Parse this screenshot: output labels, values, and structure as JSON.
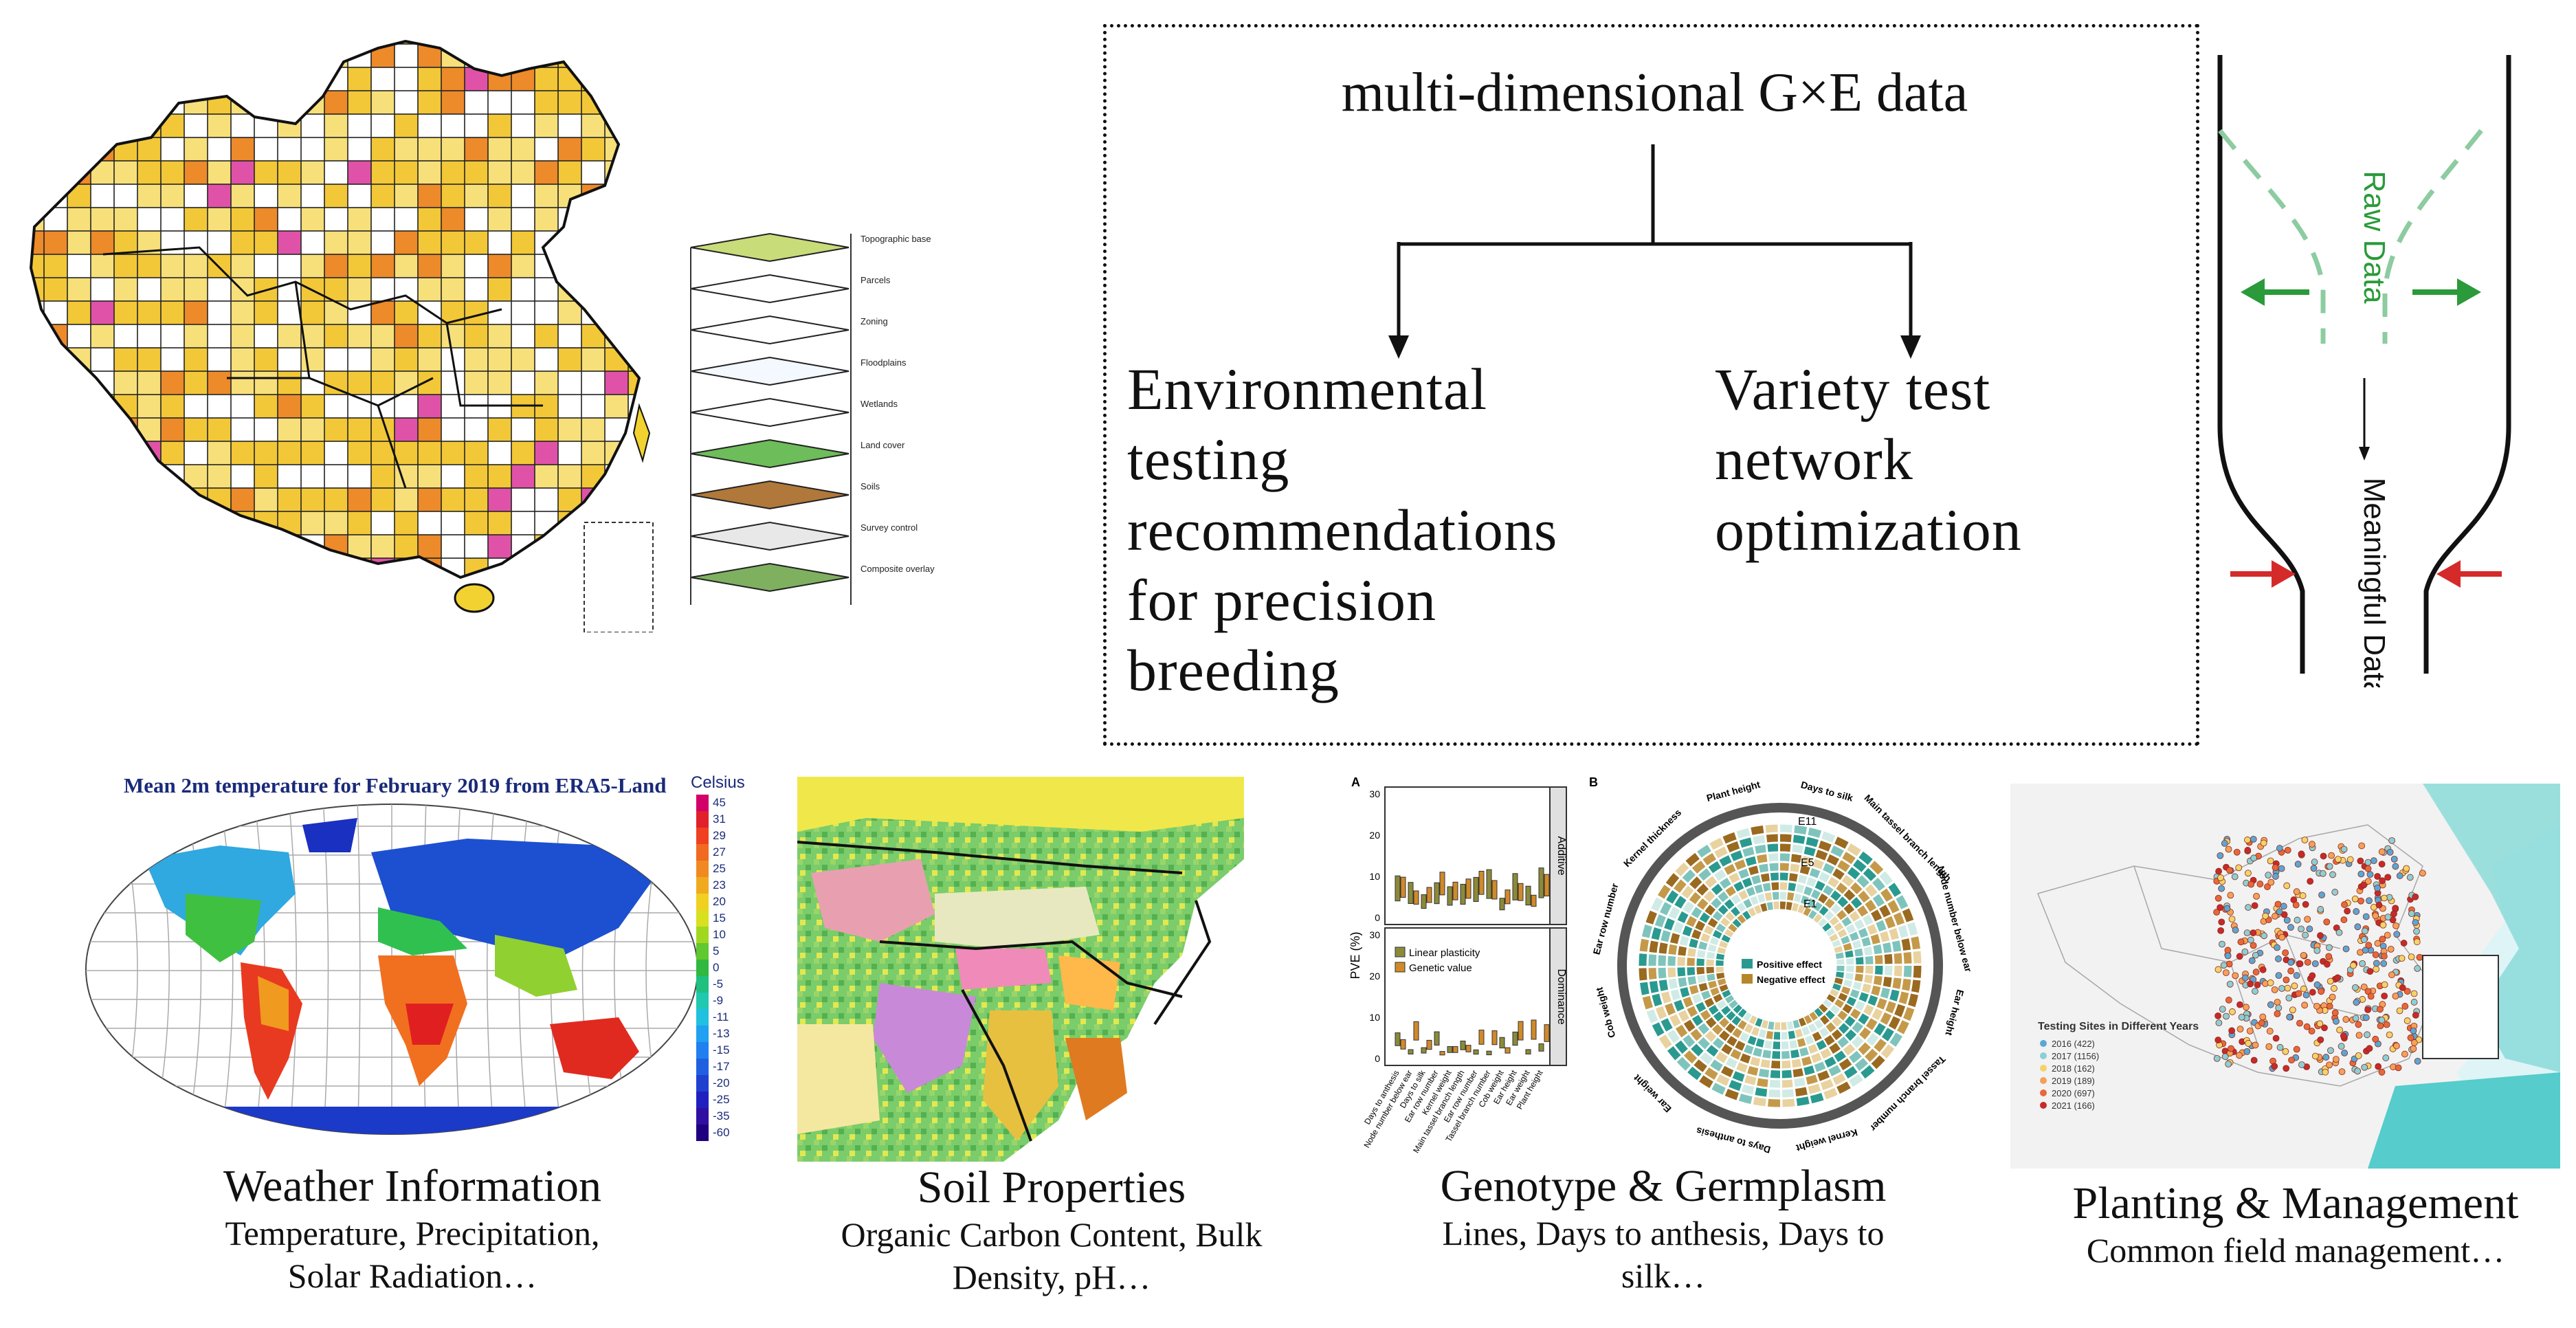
{
  "box": {
    "heading": "multi-dimensional G×E data",
    "left": [
      "Environmental",
      "testing",
      "recommendations",
      "for precision",
      "breeding"
    ],
    "right": [
      "Variety test",
      "network",
      "optimization"
    ]
  },
  "funnel": {
    "top_label": "Raw Data",
    "bottom_label": "Meaningful Data"
  },
  "layers": {
    "labels": [
      "Topographic base",
      "Parcels",
      "Zoning",
      "Floodplains",
      "Wetlands",
      "Land cover",
      "Soils",
      "Survey control",
      "Composite overlay"
    ]
  },
  "weather": {
    "map_title": "Mean 2m temperature for February 2019 from ERA5-Land",
    "unit": "Celsius",
    "scale": [
      "45",
      "31",
      "29",
      "27",
      "25",
      "23",
      "20",
      "15",
      "10",
      "5",
      "0",
      "-5",
      "-9",
      "-11",
      "-13",
      "-15",
      "-17",
      "-20",
      "-25",
      "-35",
      "-60"
    ],
    "title": "Weather Information",
    "desc": [
      "Temperature, Precipitation,",
      "Solar Radiation…"
    ]
  },
  "soil": {
    "title": "Soil Properties",
    "desc": [
      "Organic Carbon Content, Bulk",
      "Density, pH…"
    ]
  },
  "genotype": {
    "title": "Genotype & Germplasm",
    "desc": [
      "Lines, Days to anthesis, Days to",
      "silk…"
    ],
    "panel_a": "A",
    "panel_b": "B",
    "ylabel": "PVE (%)",
    "facet_top": "Additive",
    "facet_bottom": "Dominance",
    "legend_a": [
      "Linear plasticity",
      "Genetic value"
    ],
    "legend_b": [
      "Positive effect",
      "Negative effect"
    ],
    "ring_labels": [
      "Days to silk",
      "Main tassel branch length",
      "Node number below ear",
      "Ear height",
      "Tassel branch number",
      "Kernel weight",
      "Days to anthesis",
      "Ear weight",
      "Cob weight",
      "Ear row number",
      "Kernel thickness",
      "Plant height"
    ],
    "ring_marks": [
      "E11",
      "E5",
      "E1"
    ],
    "y_ticks_top": [
      "30",
      "20",
      "10",
      "0"
    ],
    "y_ticks_bottom": [
      "30",
      "20",
      "10",
      "0"
    ],
    "x_labels": [
      "Days to anthesis",
      "Node number below ear",
      "Days to silk",
      "Ear row number",
      "Kernel weight",
      "Main tassel branch length",
      "Ear row number",
      "Tassel branch number",
      "Cob weight",
      "Ear height",
      "Ear weight",
      "Plant height"
    ]
  },
  "planting": {
    "title": "Planting & Management",
    "desc": [
      "Common field management…"
    ],
    "legend_title": "Testing Sites in Different Years",
    "legend": [
      {
        "label": "2016 (422)",
        "color": "#5aa7d6"
      },
      {
        "label": "2017 (1156)",
        "color": "#8ad0d6"
      },
      {
        "label": "2018 (162)",
        "color": "#f3d36a"
      },
      {
        "label": "2019 (189)",
        "color": "#f5a05a"
      },
      {
        "label": "2020 (697)",
        "color": "#e8683a"
      },
      {
        "label": "2021 (166)",
        "color": "#c62a2a"
      }
    ]
  },
  "colors": {
    "green_arrow": "#2a9a3a",
    "red_arrow": "#d42a2a",
    "dashed_green": "#8ccca0"
  }
}
